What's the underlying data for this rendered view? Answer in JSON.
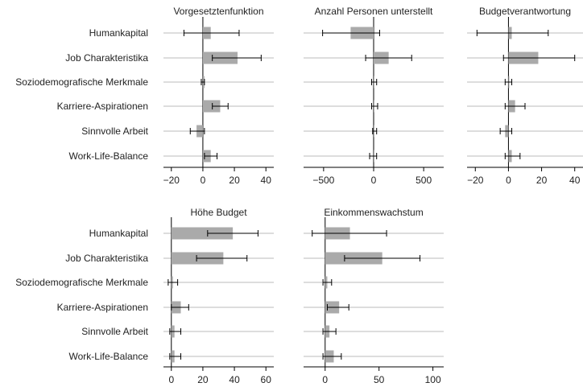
{
  "categories": [
    "Humankapital",
    "Job Charakteristika",
    "Soziodemografische Merkmale",
    "Karriere-Aspirationen",
    "Sinnvolle Arbeit",
    "Work-Life-Balance"
  ],
  "colors": {
    "bar": "#aaaaaa",
    "grid": "#bbbbbb",
    "axis": "#000000",
    "whisker": "#000000"
  },
  "chart_data": [
    {
      "type": "bar",
      "orientation": "horizontal",
      "title": "Vorgesetztenfunktion",
      "xlim": [
        -25,
        45
      ],
      "xticks": [
        -20,
        0,
        20,
        40
      ],
      "tick_labels": [
        "−20",
        "0",
        "20",
        "40"
      ],
      "values": [
        5,
        22,
        1,
        11,
        -4,
        5
      ],
      "ci_low": [
        -12,
        6,
        -1,
        6,
        -8,
        1
      ],
      "ci_high": [
        23,
        37,
        1,
        16,
        1,
        9
      ]
    },
    {
      "type": "bar",
      "orientation": "horizontal",
      "title": "Anzahl Personen unterstellt",
      "xlim": [
        -700,
        700
      ],
      "xticks": [
        -500,
        0,
        500
      ],
      "tick_labels": [
        "−500",
        "0",
        "500"
      ],
      "values": [
        -230,
        150,
        0,
        0,
        0,
        0
      ],
      "ci_low": [
        -510,
        -80,
        -20,
        -20,
        -10,
        -40
      ],
      "ci_high": [
        60,
        380,
        30,
        40,
        30,
        30
      ]
    },
    {
      "type": "bar",
      "orientation": "horizontal",
      "title": "Budgetverantwortung",
      "xlim": [
        -25,
        45
      ],
      "xticks": [
        -20,
        0,
        20,
        40
      ],
      "tick_labels": [
        "−20",
        "0",
        "20",
        "40"
      ],
      "values": [
        2,
        18,
        0,
        4,
        -2,
        2
      ],
      "ci_low": [
        -19,
        -3,
        -2,
        -2,
        -5,
        -2
      ],
      "ci_high": [
        24,
        40,
        2,
        10,
        2,
        7
      ]
    },
    {
      "type": "bar",
      "orientation": "horizontal",
      "title": "Höhe Budget",
      "xlim": [
        -5,
        65
      ],
      "xticks": [
        0,
        20,
        40,
        60
      ],
      "tick_labels": [
        "0",
        "20",
        "40",
        "60"
      ],
      "values": [
        39,
        33,
        1,
        6,
        2,
        2
      ],
      "ci_low": [
        23,
        16,
        -2,
        0,
        -1,
        -1
      ],
      "ci_high": [
        55,
        48,
        4,
        11,
        6,
        6
      ]
    },
    {
      "type": "bar",
      "orientation": "horizontal",
      "title": "Einkommenswachstum",
      "xlim": [
        -20,
        110
      ],
      "xticks": [
        0,
        50,
        100
      ],
      "tick_labels": [
        "0",
        "50",
        "100"
      ],
      "values": [
        23,
        53,
        2,
        13,
        4,
        8
      ],
      "ci_low": [
        -12,
        18,
        -2,
        2,
        -2,
        -2
      ],
      "ci_high": [
        57,
        88,
        6,
        22,
        10,
        15
      ]
    }
  ]
}
